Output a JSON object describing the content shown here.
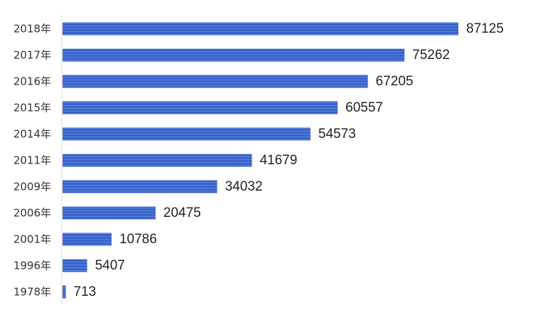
{
  "chart_data": {
    "type": "bar",
    "orientation": "horizontal",
    "categories": [
      "2018年",
      "2017年",
      "2016年",
      "2015年",
      "2014年",
      "2011年",
      "2009年",
      "2006年",
      "2001年",
      "1996年",
      "1978年"
    ],
    "values": [
      87125,
      75262,
      67205,
      60557,
      54573,
      41679,
      34032,
      20475,
      10786,
      5407,
      713
    ],
    "xlim": [
      0,
      87125
    ],
    "grid": false,
    "legend": "none",
    "bar_color": "#3a63c8",
    "bar_color_light": "#5a86e0"
  }
}
